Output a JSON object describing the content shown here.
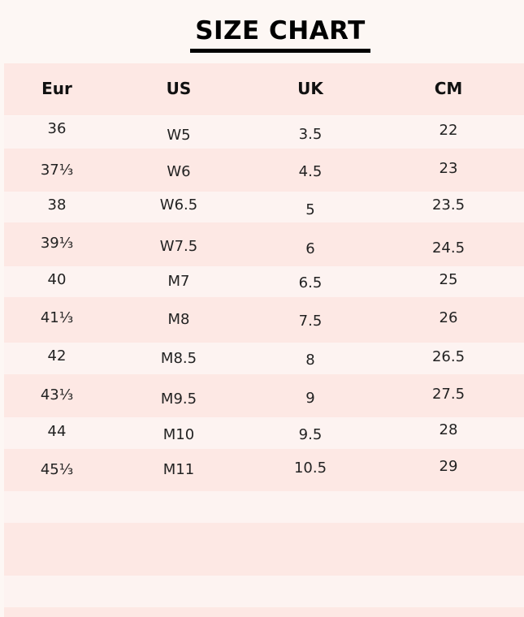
{
  "header": {
    "title": "SIZE CHART"
  },
  "table": {
    "columns": [
      "Eur",
      "US",
      "UK",
      "CM"
    ],
    "rows": [
      [
        "36",
        "W5",
        "3.5",
        "22"
      ],
      [
        "37⅓",
        "W6",
        "4.5",
        "23"
      ],
      [
        "38",
        "W6.5",
        "5",
        "23.5"
      ],
      [
        "39⅓",
        "W7.5",
        "6",
        "24.5"
      ],
      [
        "40",
        "M7",
        "6.5",
        "25"
      ],
      [
        "41⅓",
        "M8",
        "7.5",
        "26"
      ],
      [
        "42",
        "M8.5",
        "8",
        "26.5"
      ],
      [
        "43⅓",
        "M9.5",
        "9",
        "27.5"
      ],
      [
        "44",
        "M10",
        "9.5",
        "28"
      ],
      [
        "45⅓",
        "M11",
        "10.5",
        "29"
      ]
    ]
  }
}
